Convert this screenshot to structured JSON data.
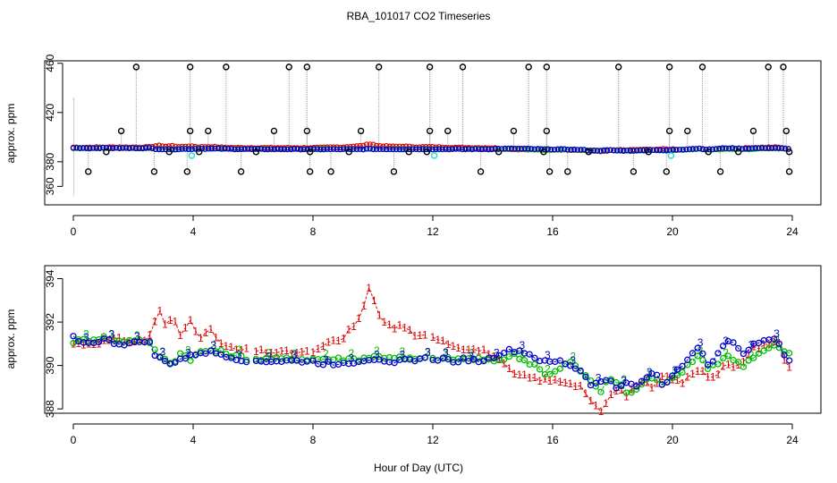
{
  "title": "RBA_101017  CO2 Timeseries",
  "colors": {
    "s1": "#dd0000",
    "s2": "#00bb00",
    "s3": "#0000cc",
    "cyan": "#33dddd",
    "black": "#000000",
    "drop": "#999999"
  },
  "chart_data": [
    {
      "type": "scatter",
      "ylabel": "approx. ppm",
      "xlim": [
        0,
        24
      ],
      "ylim": [
        345,
        462
      ],
      "xticks": [
        0,
        4,
        8,
        12,
        16,
        20,
        24
      ],
      "yticks": [
        360,
        380,
        420,
        460
      ],
      "xtick_labels": [
        "0",
        "4",
        "8",
        "12",
        "16",
        "20",
        "24"
      ],
      "ytick_labels": [
        "360",
        "380",
        "420",
        "460"
      ],
      "spike_high_x": [
        2.1,
        3.9,
        5.1,
        7.2,
        7.8,
        10.2,
        11.9,
        13.0,
        15.2,
        15.8,
        18.2,
        19.9,
        21.0,
        23.2,
        23.7
      ],
      "spike_high_y": 457,
      "spike_mid_x": [
        1.6,
        3.9,
        4.5,
        6.7,
        7.8,
        9.6,
        11.9,
        12.5,
        14.7,
        15.8,
        19.9,
        20.5,
        22.7,
        23.8
      ],
      "spike_mid_y": 405,
      "spike_low_x": [
        0.5,
        2.7,
        3.8,
        5.6,
        7.9,
        8.6,
        10.7,
        13.6,
        15.9,
        16.5,
        18.7,
        19.8,
        21.6,
        23.9
      ],
      "spike_low_y": 372,
      "step_x": [
        1.1,
        3.2,
        4.2,
        6.1,
        7.9,
        9.2,
        11.2,
        11.8,
        14.2,
        15.7,
        17.2,
        19.2,
        21.2,
        22.2,
        23.9
      ],
      "step_y": 388,
      "cyan_x": [
        3.95,
        12.05,
        19.95
      ],
      "cyan_y": 385
    },
    {
      "type": "line",
      "ylabel": "approx. ppm",
      "xlabel": "Hour of Day (UTC)",
      "xlim": [
        0,
        24
      ],
      "ylim": [
        387.8,
        394.6
      ],
      "xticks": [
        0,
        4,
        8,
        12,
        16,
        20,
        24
      ],
      "yticks": [
        388,
        390,
        392,
        394
      ],
      "xtick_labels": [
        "0",
        "4",
        "8",
        "12",
        "16",
        "20",
        "24"
      ],
      "ytick_labels": [
        "388",
        "390",
        "392",
        "394"
      ],
      "segments": [
        [
          0.0,
          5.9
        ],
        [
          6.1,
          7.9
        ],
        [
          8.0,
          11.9
        ],
        [
          12.0,
          24.0
        ]
      ],
      "series": [
        {
          "name": "1",
          "x": [
            0,
            0.5,
            1,
            1.5,
            2,
            2.5,
            2.7,
            2.9,
            3.1,
            3.3,
            3.6,
            3.9,
            4.2,
            4.6,
            5.0,
            5.5,
            6.0,
            6.5,
            7.0,
            7.5,
            7.9,
            8.3,
            8.6,
            9.0,
            9.3,
            9.6,
            9.8,
            9.95,
            10.1,
            10.4,
            10.7,
            11.0,
            11.4,
            11.9,
            12.3,
            12.7,
            13.1,
            13.5,
            13.9,
            14.3,
            14.7,
            15.0,
            15.4,
            15.8,
            16.2,
            16.6,
            17.0,
            17.3,
            17.6,
            17.9,
            18.2,
            18.5,
            18.8,
            19.1,
            19.4,
            19.7,
            20.0,
            20.3,
            20.6,
            20.9,
            21.2,
            21.5,
            21.8,
            22.1,
            22.4,
            22.7,
            23.0,
            23.3,
            23.6,
            23.8
          ],
          "y": [
            391.0,
            391.0,
            391.1,
            391.2,
            391.1,
            391.2,
            392.0,
            392.5,
            391.7,
            392.3,
            391.3,
            392.2,
            391.3,
            391.6,
            390.9,
            390.7,
            390.7,
            390.6,
            390.6,
            390.6,
            390.6,
            390.8,
            391.1,
            391.2,
            391.8,
            392.2,
            393.2,
            394.1,
            392.4,
            392.0,
            391.7,
            391.9,
            391.3,
            391.4,
            391.2,
            390.9,
            390.8,
            390.7,
            390.6,
            390.1,
            389.6,
            389.5,
            389.4,
            389.3,
            389.3,
            389.2,
            389.0,
            388.3,
            387.8,
            388.6,
            388.9,
            388.6,
            389.1,
            389.3,
            388.9,
            389.7,
            389.4,
            389.2,
            389.5,
            389.9,
            389.5,
            389.6,
            390.1,
            389.8,
            390.3,
            390.8,
            390.9,
            391.1,
            391.0,
            389.9
          ]
        },
        {
          "name": "2",
          "x": [
            0,
            0.5,
            1,
            1.5,
            2,
            2.5,
            2.7,
            3.0,
            3.3,
            3.6,
            3.9,
            4.2,
            4.6,
            5.0,
            5.5,
            6.0,
            6.5,
            7.0,
            7.5,
            7.9,
            8.3,
            8.7,
            9.1,
            9.5,
            9.9,
            10.3,
            10.7,
            11.1,
            11.5,
            11.9,
            12.3,
            12.7,
            13.1,
            13.5,
            13.9,
            14.3,
            14.7,
            15.1,
            15.5,
            15.8,
            16.2,
            16.6,
            17.0,
            17.3,
            17.6,
            17.9,
            18.2,
            18.5,
            18.8,
            19.1,
            19.4,
            19.7,
            20.0,
            20.3,
            20.6,
            20.9,
            21.2,
            21.5,
            21.8,
            22.1,
            22.4,
            22.7,
            23.0,
            23.3,
            23.6,
            23.8
          ],
          "y": [
            391.1,
            391.2,
            391.3,
            391.1,
            391.2,
            391.1,
            390.7,
            390.3,
            390.1,
            390.6,
            390.3,
            390.6,
            390.7,
            390.6,
            390.4,
            390.3,
            390.3,
            390.3,
            390.3,
            390.3,
            390.3,
            390.3,
            390.3,
            390.3,
            390.4,
            390.4,
            390.4,
            390.3,
            390.3,
            390.3,
            390.3,
            390.3,
            390.3,
            390.3,
            390.2,
            390.3,
            390.5,
            390.2,
            390.0,
            389.5,
            389.8,
            390.2,
            389.6,
            389.3,
            388.8,
            389.4,
            389.2,
            388.7,
            388.9,
            389.3,
            389.5,
            389.0,
            389.5,
            389.7,
            390.2,
            390.4,
            389.9,
            390.1,
            390.5,
            390.2,
            390.0,
            390.4,
            390.6,
            390.9,
            390.8,
            390.5
          ]
        },
        {
          "name": "3",
          "x": [
            0,
            0.5,
            1,
            1.5,
            2,
            2.5,
            2.7,
            3.0,
            3.3,
            3.6,
            3.9,
            4.2,
            4.6,
            5.0,
            5.5,
            6.0,
            6.5,
            7.0,
            7.5,
            7.9,
            8.3,
            8.7,
            9.1,
            9.5,
            9.9,
            10.3,
            10.7,
            11.1,
            11.5,
            11.9,
            12.3,
            12.7,
            13.1,
            13.5,
            13.9,
            14.3,
            14.7,
            15.1,
            15.5,
            15.8,
            16.2,
            16.6,
            17.0,
            17.3,
            17.6,
            17.9,
            18.2,
            18.5,
            18.8,
            19.1,
            19.4,
            19.7,
            20.0,
            20.3,
            20.6,
            20.9,
            21.2,
            21.5,
            21.8,
            22.1,
            22.4,
            22.7,
            23.0,
            23.3,
            23.6,
            23.8
          ],
          "y": [
            391.3,
            391.0,
            391.2,
            391.0,
            391.0,
            391.2,
            390.5,
            390.2,
            390.1,
            390.3,
            390.4,
            390.6,
            390.6,
            390.5,
            390.3,
            390.2,
            390.2,
            390.2,
            390.2,
            390.2,
            390.1,
            390.1,
            390.1,
            390.2,
            390.3,
            390.3,
            390.2,
            390.2,
            390.3,
            390.3,
            390.3,
            390.2,
            390.3,
            390.2,
            390.3,
            390.6,
            390.7,
            390.6,
            390.3,
            390.1,
            390.2,
            390.0,
            389.7,
            389.1,
            389.2,
            389.4,
            388.9,
            389.2,
            389.0,
            389.5,
            389.7,
            389.0,
            389.6,
            390.0,
            390.5,
            390.8,
            389.9,
            390.6,
            391.2,
            390.9,
            390.6,
            391.0,
            391.1,
            391.2,
            391.0,
            390.3
          ]
        }
      ]
    }
  ]
}
